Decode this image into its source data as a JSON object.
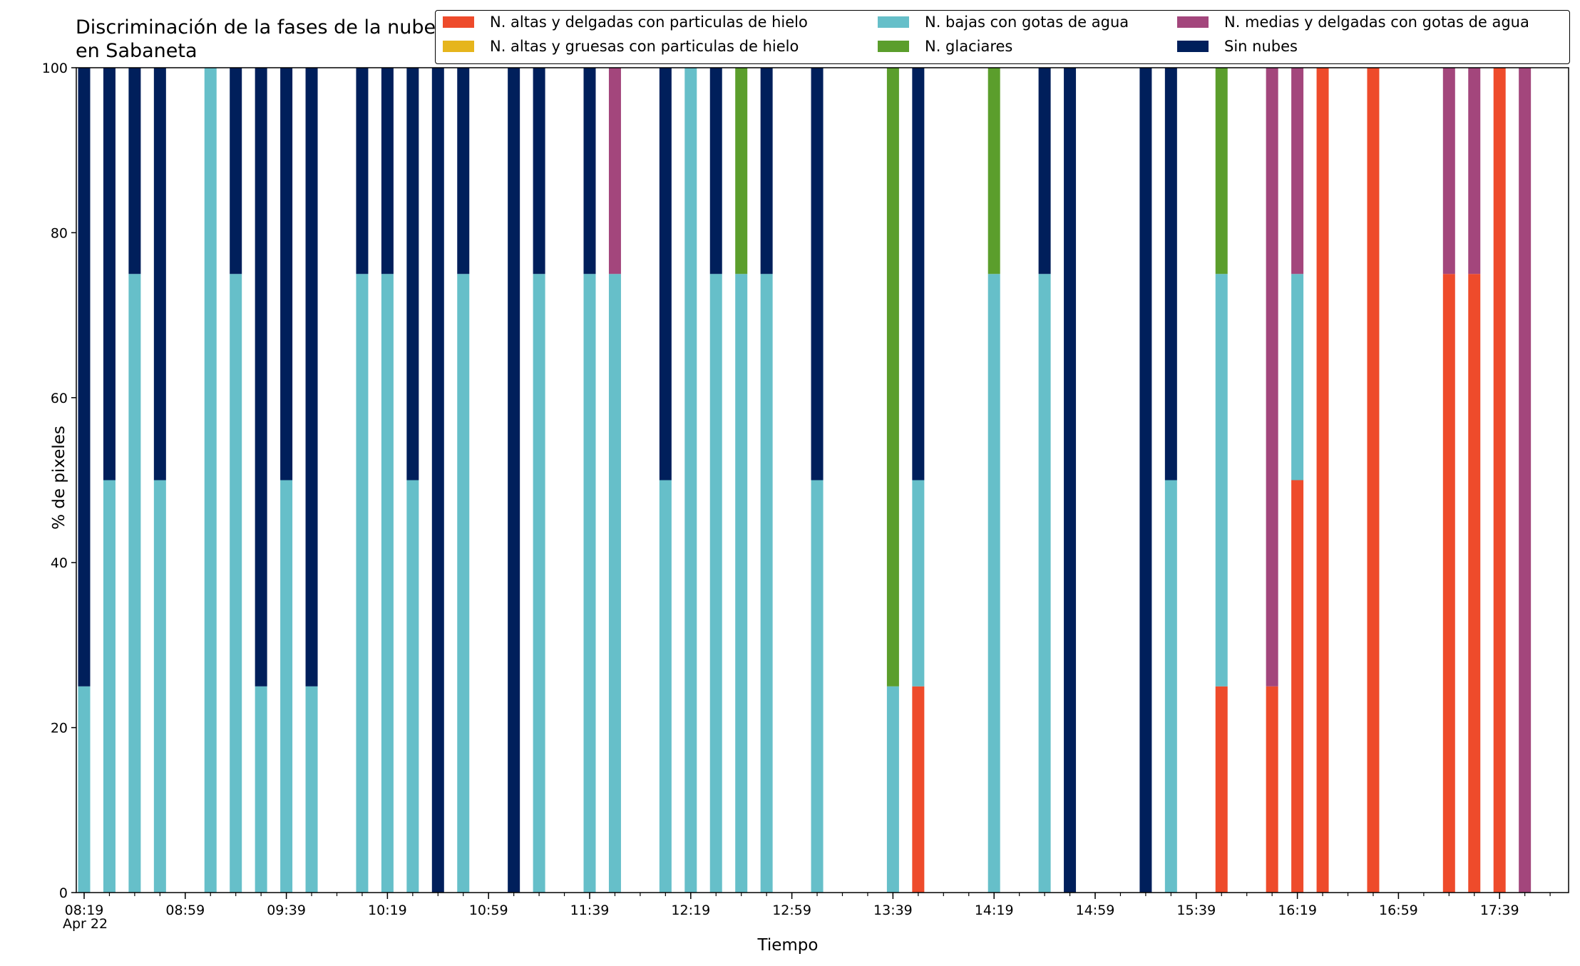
{
  "chart_data": {
    "type": "bar",
    "stacked": true,
    "title": "Discriminación de la fases de la nube en Sabaneta",
    "xlabel": "Tiempo",
    "ylabel": "% de pixeles",
    "ylim": [
      0,
      100
    ],
    "yticks": [
      0,
      20,
      40,
      60,
      80,
      100
    ],
    "xticks": [
      "08:19",
      "08:59",
      "09:39",
      "10:19",
      "10:59",
      "11:39",
      "12:19",
      "12:59",
      "13:39",
      "14:19",
      "14:59",
      "15:39",
      "16:19",
      "16:59",
      "17:39"
    ],
    "xtick_sub": "Apr 22",
    "legend_position": "top-right",
    "grid": false,
    "series": [
      {
        "key": "alta_delgada",
        "name": "N. altas y delgadas con particulas de hielo",
        "color": "#ee4b2b"
      },
      {
        "key": "alta_gruesa",
        "name": "N. altas y gruesas con particulas de hielo",
        "color": "#e6b51c"
      },
      {
        "key": "baja",
        "name": "N. bajas con gotas de agua",
        "color": "#66bfc9"
      },
      {
        "key": "glaciar",
        "name": "N. glaciares",
        "color": "#5b9e2c"
      },
      {
        "key": "media",
        "name": "N. medias y delgadas con gotas de agua",
        "color": "#a3467c"
      },
      {
        "key": "sin",
        "name": "Sin nubes",
        "color": "#001f5b"
      }
    ],
    "bars": [
      {
        "t": "08:19",
        "baja": 25,
        "sin": 75
      },
      {
        "t": "08:29",
        "baja": 50,
        "sin": 50
      },
      {
        "t": "08:39",
        "baja": 75,
        "sin": 25
      },
      {
        "t": "08:49",
        "baja": 50,
        "sin": 50
      },
      {
        "t": "09:09",
        "baja": 100
      },
      {
        "t": "09:19",
        "baja": 75,
        "sin": 25
      },
      {
        "t": "09:29",
        "baja": 25,
        "sin": 75
      },
      {
        "t": "09:39",
        "baja": 50,
        "sin": 50
      },
      {
        "t": "09:49",
        "baja": 25,
        "sin": 75
      },
      {
        "t": "10:09",
        "baja": 75,
        "sin": 25
      },
      {
        "t": "10:19",
        "baja": 75,
        "sin": 25
      },
      {
        "t": "10:29",
        "baja": 50,
        "sin": 50
      },
      {
        "t": "10:39",
        "sin": 100
      },
      {
        "t": "10:49",
        "baja": 75,
        "sin": 25
      },
      {
        "t": "11:09",
        "sin": 100
      },
      {
        "t": "11:19",
        "baja": 75,
        "sin": 25
      },
      {
        "t": "11:39",
        "baja": 75,
        "sin": 25
      },
      {
        "t": "11:49",
        "baja": 75,
        "media": 25
      },
      {
        "t": "12:09",
        "baja": 50,
        "sin": 50
      },
      {
        "t": "12:19",
        "baja": 100
      },
      {
        "t": "12:29",
        "baja": 75,
        "sin": 25
      },
      {
        "t": "12:39",
        "baja": 75,
        "glaciar": 25
      },
      {
        "t": "12:49",
        "baja": 75,
        "sin": 25
      },
      {
        "t": "13:09",
        "baja": 50,
        "sin": 50
      },
      {
        "t": "13:39",
        "baja": 25,
        "glaciar": 75
      },
      {
        "t": "13:49",
        "alta_delgada": 25,
        "baja": 25,
        "sin": 50
      },
      {
        "t": "14:19",
        "baja": 75,
        "glaciar": 25
      },
      {
        "t": "14:39",
        "baja": 75,
        "sin": 25
      },
      {
        "t": "14:49",
        "sin": 100
      },
      {
        "t": "15:19",
        "sin": 100
      },
      {
        "t": "15:29",
        "baja": 50,
        "sin": 50
      },
      {
        "t": "15:49",
        "alta_delgada": 25,
        "baja": 50,
        "glaciar": 25
      },
      {
        "t": "16:09",
        "alta_delgada": 25,
        "media": 75
      },
      {
        "t": "16:19",
        "alta_delgada": 50,
        "baja": 25,
        "media": 25
      },
      {
        "t": "16:29",
        "alta_delgada": 100
      },
      {
        "t": "16:49",
        "alta_delgada": 100
      },
      {
        "t": "17:19",
        "alta_delgada": 75,
        "media": 25
      },
      {
        "t": "17:29",
        "alta_delgada": 75,
        "media": 25
      },
      {
        "t": "17:39",
        "alta_delgada": 100
      },
      {
        "t": "17:49",
        "media": 100
      }
    ]
  }
}
